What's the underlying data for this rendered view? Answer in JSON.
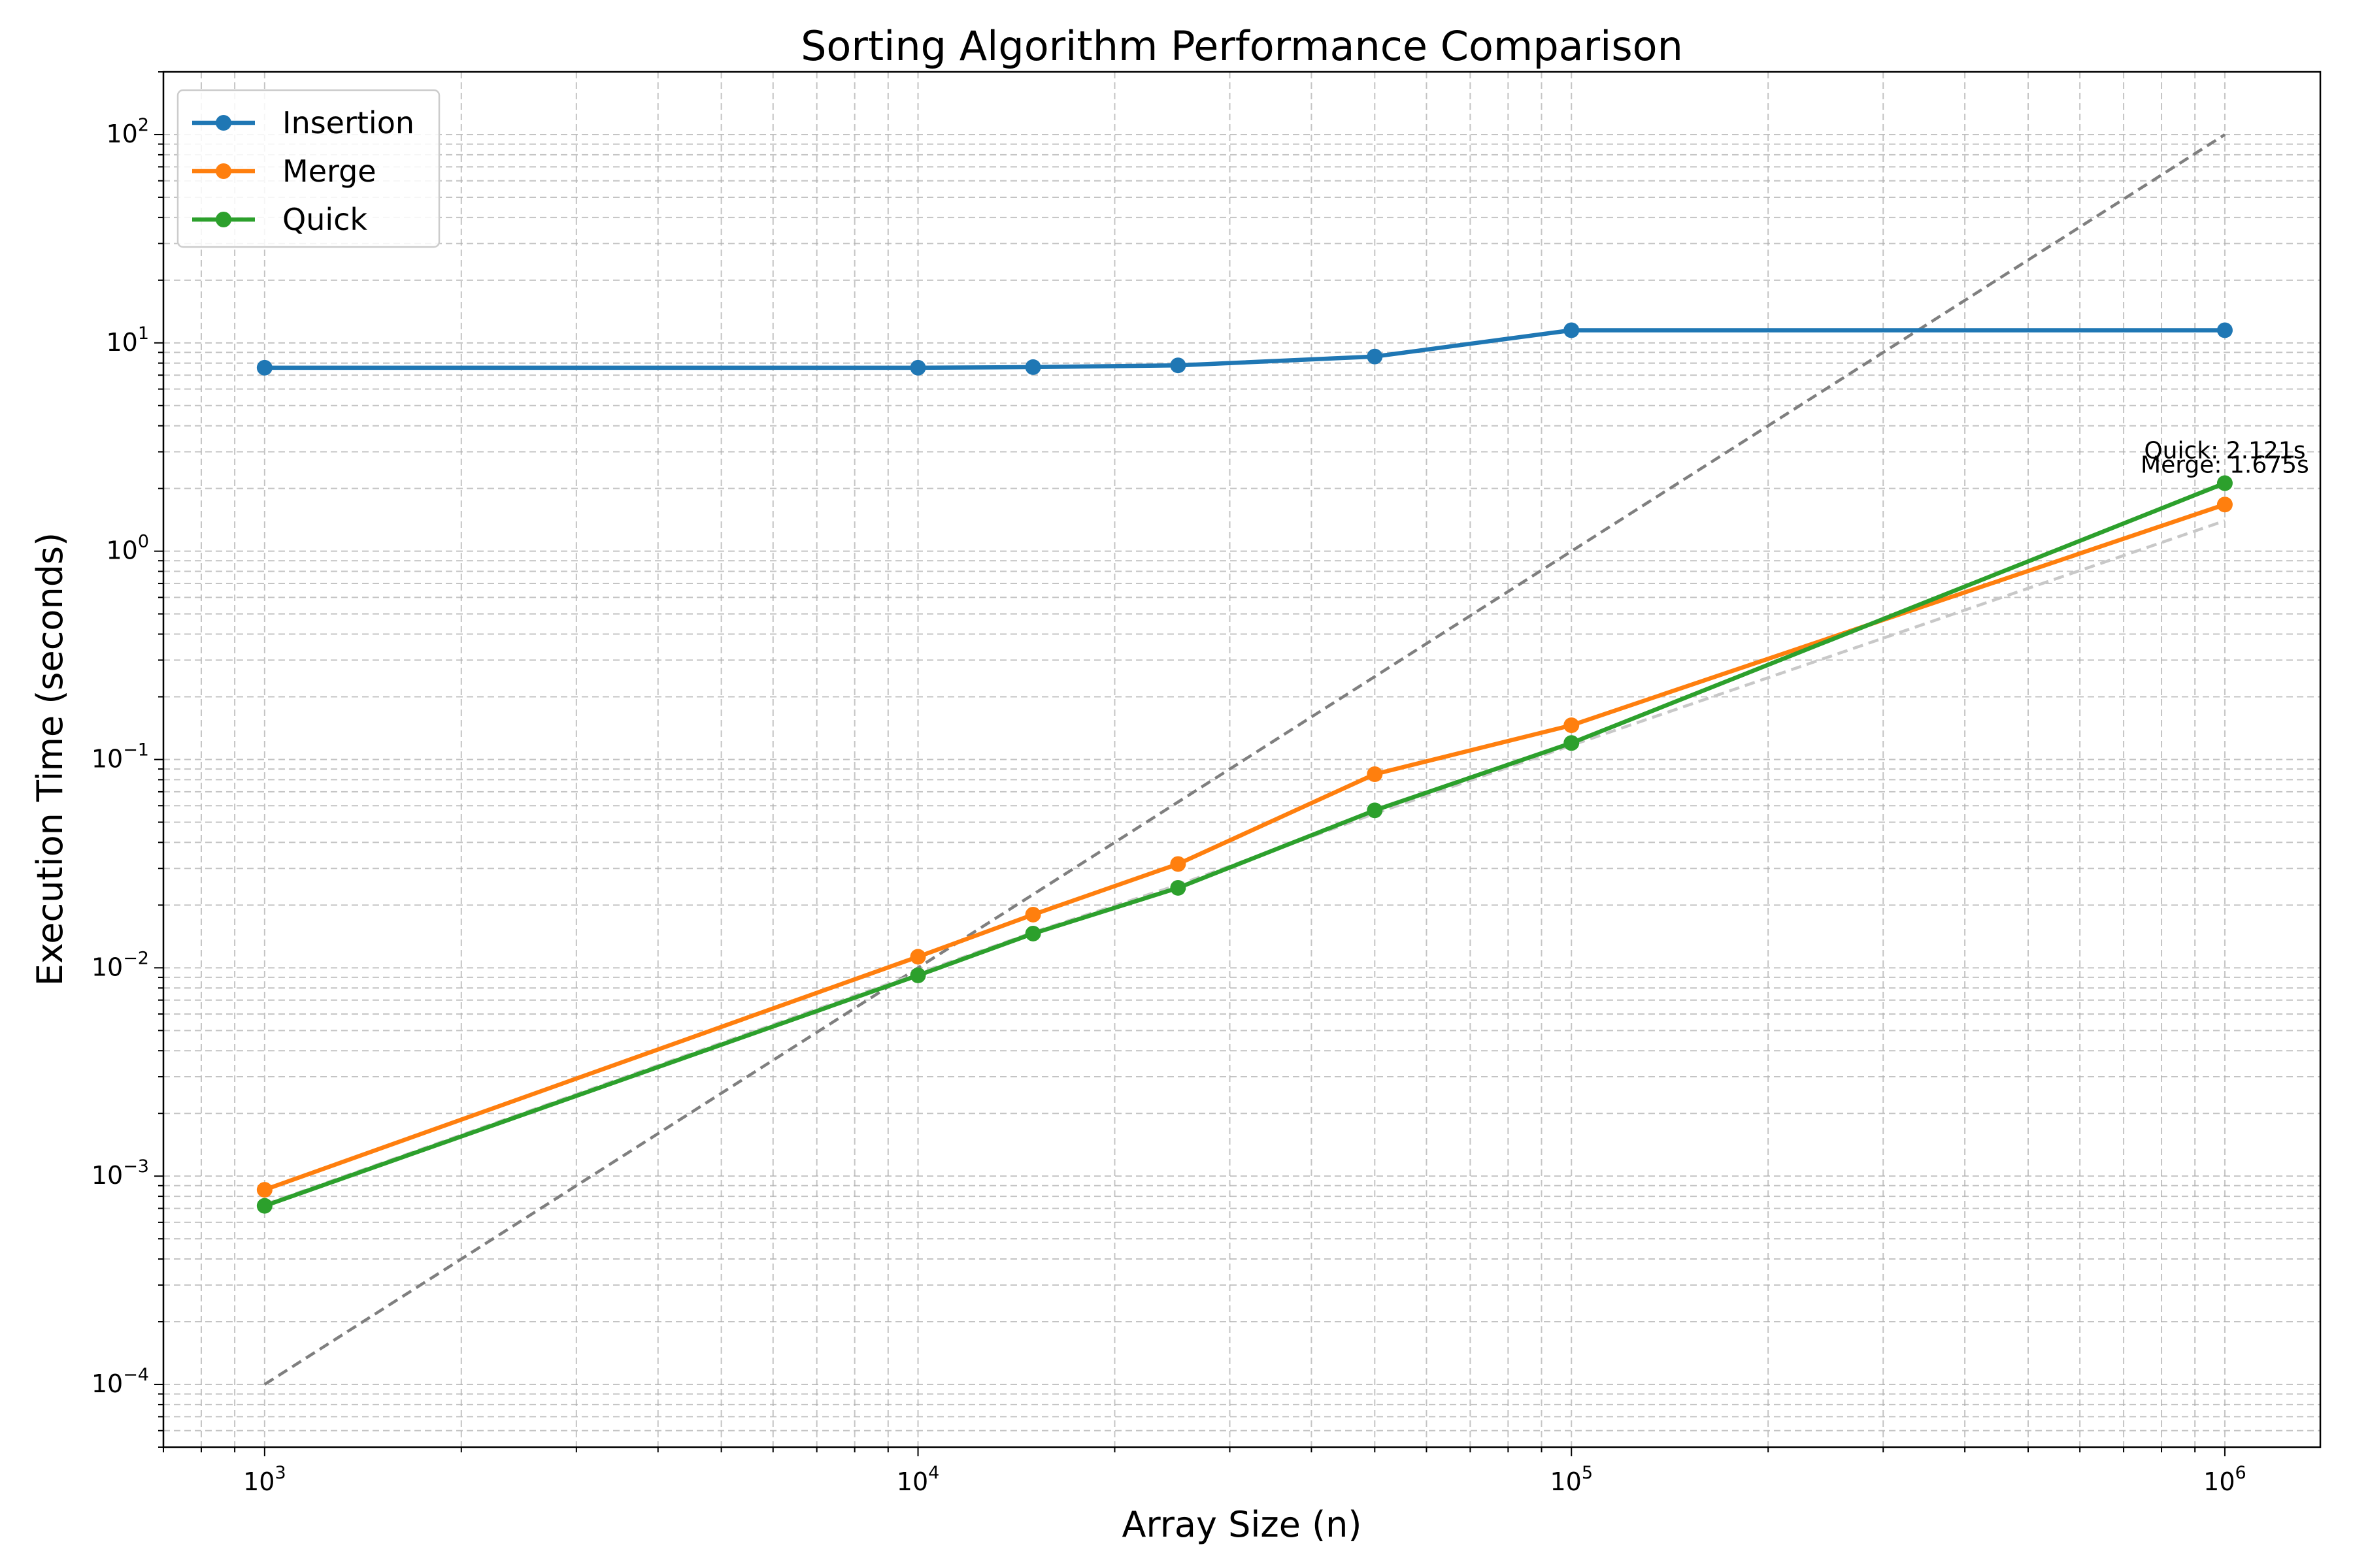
{
  "chart_data": {
    "type": "line",
    "title": "Sorting Algorithm Performance Comparison",
    "xlabel": "Array Size (n)",
    "ylabel": "Execution Time (seconds)",
    "xscale": "log",
    "yscale": "log",
    "xlim": [
      700,
      1400000
    ],
    "ylim": [
      5e-05,
      200
    ],
    "grid": true,
    "legend_position": "upper-left",
    "x_ticks": [
      {
        "value": 1000,
        "mantissa": "10",
        "exponent": "3"
      },
      {
        "value": 10000,
        "mantissa": "10",
        "exponent": "4"
      },
      {
        "value": 100000,
        "mantissa": "10",
        "exponent": "5"
      },
      {
        "value": 1000000,
        "mantissa": "10",
        "exponent": "6"
      }
    ],
    "y_ticks": [
      {
        "value": 0.0001,
        "mantissa": "10",
        "exponent": "−4"
      },
      {
        "value": 0.001,
        "mantissa": "10",
        "exponent": "−3"
      },
      {
        "value": 0.01,
        "mantissa": "10",
        "exponent": "−2"
      },
      {
        "value": 0.1,
        "mantissa": "10",
        "exponent": "−1"
      },
      {
        "value": 1,
        "mantissa": "10",
        "exponent": "0"
      },
      {
        "value": 10,
        "mantissa": "10",
        "exponent": "1"
      },
      {
        "value": 100,
        "mantissa": "10",
        "exponent": "2"
      }
    ],
    "x": [
      1000,
      10000,
      15000,
      25000,
      50000,
      100000,
      1000000
    ],
    "series": [
      {
        "name": "Insertion",
        "color": "#1f77b4",
        "values": [
          7.6,
          7.6,
          7.65,
          7.8,
          8.6,
          11.5,
          11.5
        ]
      },
      {
        "name": "Merge",
        "color": "#ff7f0e",
        "values": [
          0.00086,
          0.0113,
          0.018,
          0.0315,
          0.085,
          0.146,
          1.675
        ]
      },
      {
        "name": "Quick",
        "color": "#2ca02c",
        "values": [
          0.00072,
          0.0092,
          0.0146,
          0.0242,
          0.057,
          0.12,
          2.121
        ]
      }
    ],
    "reference_lines": [
      {
        "style": "dashed",
        "color": "#7f7f7f",
        "x": [
          1000,
          1000000
        ],
        "y": [
          0.0001,
          100
        ]
      },
      {
        "style": "dashed",
        "color": "#c8c8c8",
        "x": [
          1000,
          10000,
          15000,
          25000,
          50000,
          100000,
          1000000
        ],
        "y": [
          0.00073,
          0.0094,
          0.0148,
          0.025,
          0.055,
          0.117,
          1.4
        ]
      }
    ],
    "annotations": [
      {
        "text": "Quick: 2.121s",
        "x": 1000000,
        "y": 2.121
      },
      {
        "text": "Merge: 1.675s",
        "x": 1000000,
        "y": 1.675
      }
    ]
  }
}
